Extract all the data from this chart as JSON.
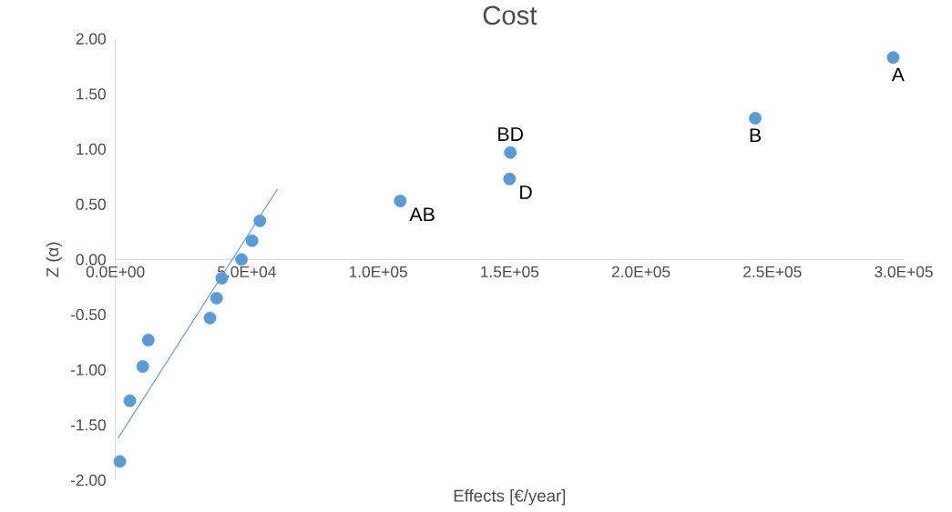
{
  "chart_data": {
    "type": "scatter",
    "title": "Cost",
    "xlabel": "Effects [€/year]",
    "ylabel": "Z (α)",
    "xlim": [
      0,
      300000
    ],
    "ylim": [
      -2,
      2
    ],
    "xticks": [
      {
        "value": 0,
        "label": "0.0E+00"
      },
      {
        "value": 50000,
        "label": "5.0E+04"
      },
      {
        "value": 100000,
        "label": "1.0E+05"
      },
      {
        "value": 150000,
        "label": "1.5E+05"
      },
      {
        "value": 200000,
        "label": "2.0E+05"
      },
      {
        "value": 250000,
        "label": "2.5E+05"
      },
      {
        "value": 300000,
        "label": "3.0E+05"
      }
    ],
    "yticks": [
      {
        "value": -2,
        "label": "-2.00"
      },
      {
        "value": -1.5,
        "label": "-1.50"
      },
      {
        "value": -1,
        "label": "-1.00"
      },
      {
        "value": -0.5,
        "label": "-0.50"
      },
      {
        "value": 0,
        "label": "0.00"
      },
      {
        "value": 0.5,
        "label": "0.50"
      },
      {
        "value": 1,
        "label": "1.00"
      },
      {
        "value": 1.5,
        "label": "1.50"
      },
      {
        "value": 2,
        "label": "2.00"
      }
    ],
    "marker": "circle",
    "series": [
      {
        "color": "#5b9bd5",
        "x": [
          1700,
          5500,
          10400,
          12500,
          36000,
          38500,
          40500,
          48000,
          52000,
          55000,
          108400,
          150000,
          150300,
          243500,
          296000
        ],
        "values": [
          -1.83,
          -1.28,
          -0.97,
          -0.73,
          -0.53,
          -0.35,
          -0.17,
          0,
          0.17,
          0.35,
          0.53,
          0.73,
          0.97,
          1.28,
          1.83
        ]
      },
      {
        "type": "line",
        "color": "#5b9bd5",
        "marker": "none",
        "x": [
          1000,
          61700
        ],
        "values": [
          -1.62,
          0.64
        ]
      }
    ],
    "annotations": [
      {
        "text": "AB",
        "x": 108400,
        "y": 0.53
      },
      {
        "text": "D",
        "x": 150000,
        "y": 0.73
      },
      {
        "text": "BD",
        "x": 150300,
        "y": 0.97
      },
      {
        "text": "B",
        "x": 243500,
        "y": 1.28
      },
      {
        "text": "A",
        "x": 296000,
        "y": 1.83
      }
    ]
  }
}
